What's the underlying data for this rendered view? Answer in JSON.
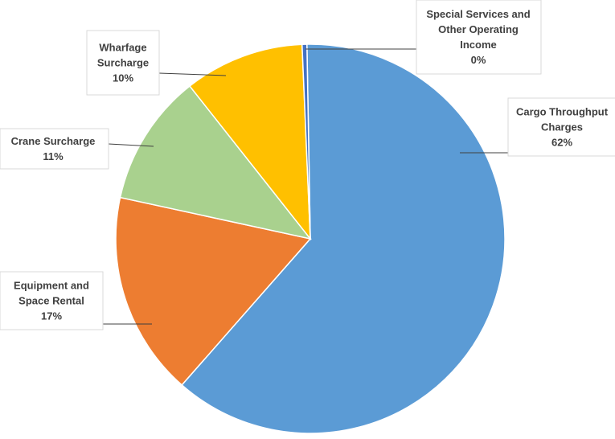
{
  "chart_data": {
    "type": "pie",
    "slices": [
      {
        "name_lines": [
          "Cargo Throughput",
          "Charges"
        ],
        "pct_label": "62%",
        "value": 62,
        "color": "#5b9bd5"
      },
      {
        "name_lines": [
          "Equipment and",
          "Space Rental"
        ],
        "pct_label": "17%",
        "value": 17,
        "color": "#ed7d31"
      },
      {
        "name_lines": [
          "Crane Surcharge"
        ],
        "pct_label": "11%",
        "value": 11,
        "color": "#a9d18e"
      },
      {
        "name_lines": [
          "Wharfage",
          "Surcharge"
        ],
        "pct_label": "10%",
        "value": 10,
        "color": "#ffc000"
      },
      {
        "name_lines": [
          "Special Services and",
          "Other Operating",
          "Income"
        ],
        "pct_label": "0%",
        "value": 0.4,
        "color": "#4472c4"
      }
    ]
  }
}
